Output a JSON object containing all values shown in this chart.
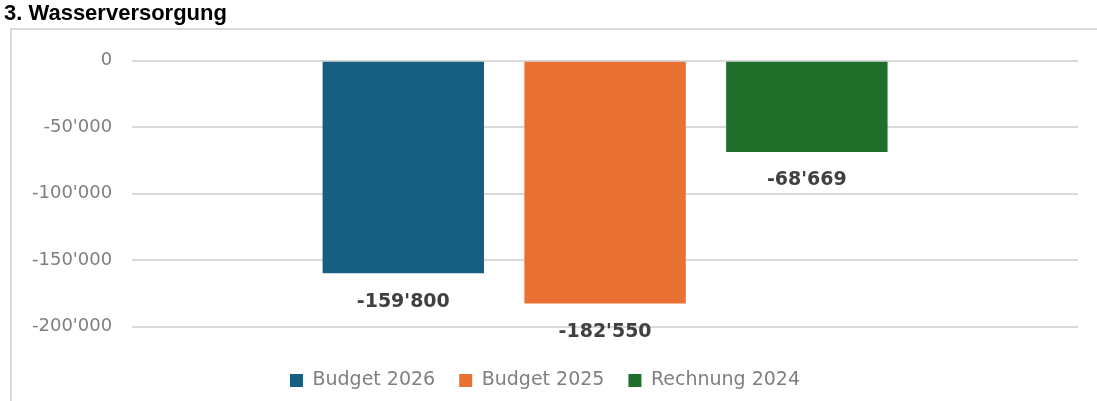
{
  "chart_data": {
    "type": "bar",
    "title": "3. Wasserversorgung",
    "categories": [
      null
    ],
    "series": [
      {
        "name": "Budget 2026",
        "color": "#175f82",
        "values": [
          -159800
        ],
        "value_labels": [
          "-159'800"
        ]
      },
      {
        "name": "Budget 2025",
        "color": "#e97132",
        "values": [
          -182550
        ],
        "value_labels": [
          "-182'550"
        ]
      },
      {
        "name": "Rechnung 2024",
        "color": "#1f6e2a",
        "values": [
          -68669
        ],
        "value_labels": [
          "-68'669"
        ]
      }
    ],
    "ylim": [
      -200000,
      0
    ],
    "yticks": [
      {
        "value": 0,
        "label": "0"
      },
      {
        "value": -50000,
        "label": "-50'000"
      },
      {
        "value": -100000,
        "label": "-100'000"
      },
      {
        "value": -150000,
        "label": "-150'000"
      },
      {
        "value": -200000,
        "label": "-200'000"
      }
    ],
    "grid": "y",
    "legend": "bottom"
  }
}
